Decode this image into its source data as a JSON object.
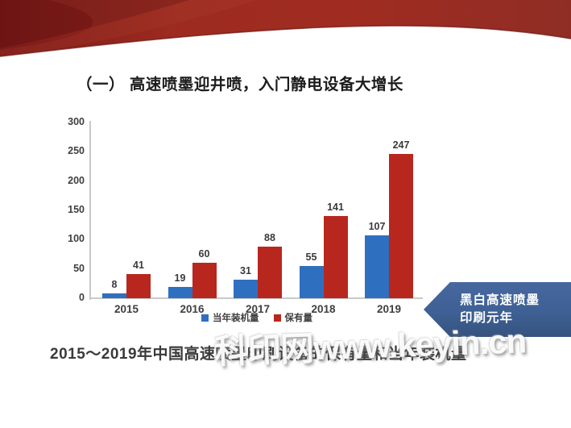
{
  "slide": {
    "title": "（一） 高速喷墨迎井喷，入门静电设备大增长",
    "caption": "2015～2019年中国高速喷墨印刷设备的保有量和当年装机量",
    "watermark": "科印网www.keyin.cn",
    "callout": {
      "line1": "黑白高速喷墨",
      "line2": "印刷元年"
    }
  },
  "colors": {
    "callout_bg": "#3e6094",
    "ribbon_dark": "#6e1414",
    "ribbon_main": "#9e2b20",
    "ribbon_light": "#a6453a",
    "series_blue": "#2f6fc0",
    "series_red": "#b8271e",
    "axis": "#c9c9c9",
    "text": "#3f3f3f"
  },
  "chart_data": {
    "type": "bar",
    "categories": [
      "2015",
      "2016",
      "2017",
      "2018",
      "2019"
    ],
    "series": [
      {
        "name": "当年装机量",
        "color": "#2f6fc0",
        "values": [
          8,
          19,
          31,
          55,
          107
        ]
      },
      {
        "name": "保有量",
        "color": "#b8271e",
        "values": [
          41,
          60,
          88,
          141,
          247
        ]
      }
    ],
    "title": "",
    "xlabel": "",
    "ylabel": "",
    "ylim": [
      0,
      300
    ],
    "yticks": [
      0,
      50,
      100,
      150,
      200,
      250,
      300
    ],
    "grid": false,
    "legend_position": "bottom",
    "bar_value_labels": true
  }
}
